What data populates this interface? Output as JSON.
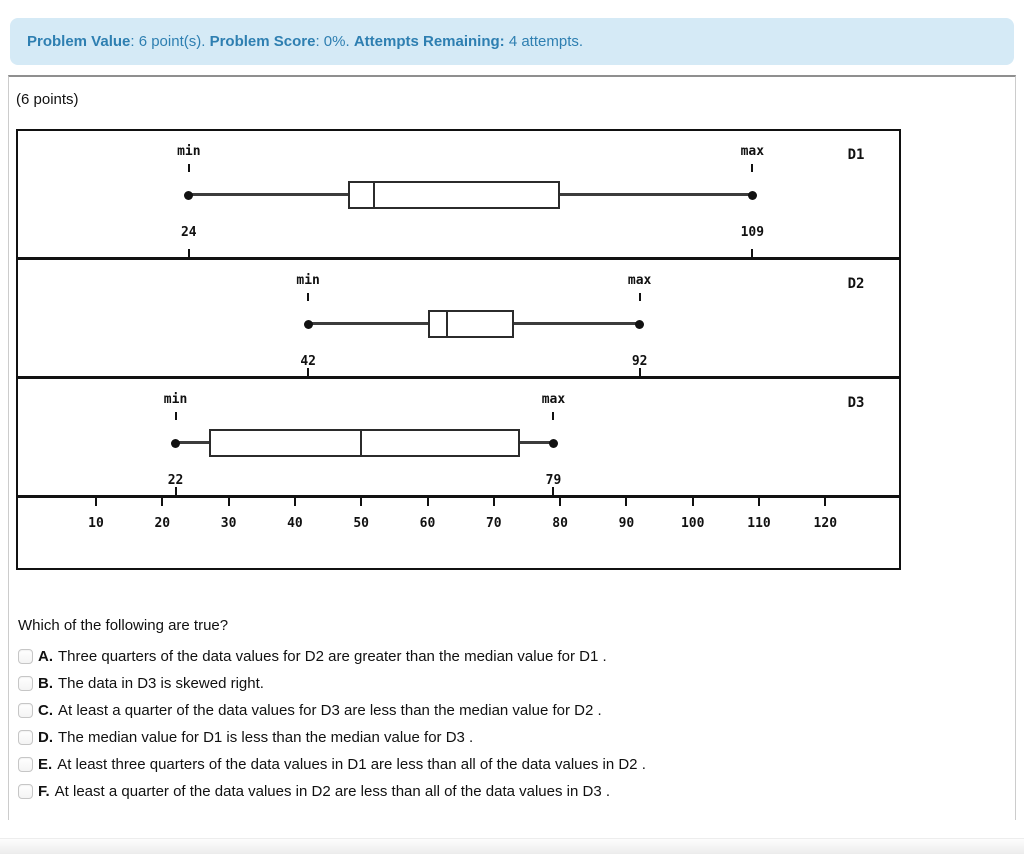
{
  "banner": {
    "segments": [
      {
        "text": "Problem Value",
        "bold": true
      },
      {
        "text": ": 6 point(s). ",
        "bold": false
      },
      {
        "text": "Problem Score",
        "bold": true
      },
      {
        "text": ": 0%. ",
        "bold": false
      },
      {
        "text": "Attempts Remaining:",
        "bold": true
      },
      {
        "text": " 4 attempts.",
        "bold": false
      }
    ]
  },
  "points_label": "(6 points)",
  "chart_data": {
    "type": "boxplot",
    "orientation": "horizontal",
    "axis": {
      "min": 10,
      "max": 120,
      "tick_step": 10,
      "ticks": [
        10,
        20,
        30,
        40,
        50,
        60,
        70,
        80,
        90,
        100,
        110,
        120
      ]
    },
    "annotations": {
      "min_label": "min",
      "max_label": "max"
    },
    "series": [
      {
        "name": "D1",
        "min": 24,
        "q1": 48,
        "median": 52,
        "q3": 80,
        "max": 109
      },
      {
        "name": "D2",
        "min": 42,
        "q1": 60,
        "median": 63,
        "q3": 73,
        "max": 92
      },
      {
        "name": "D3",
        "min": 22,
        "q1": 27,
        "median": 50,
        "q3": 74,
        "max": 79
      }
    ]
  },
  "question": {
    "prompt": "Which of the following are true?",
    "options": [
      {
        "letter": "A.",
        "text": "Three quarters of the data values for D2 are greater than the median value for D1 .",
        "checked": false
      },
      {
        "letter": "B.",
        "text": "The data in D3 is skewed right.",
        "checked": false
      },
      {
        "letter": "C.",
        "text": "At least a quarter of the data values for D3 are less than the median value for D2 .",
        "checked": false
      },
      {
        "letter": "D.",
        "text": "The median value for D1 is less than the median value for D3 .",
        "checked": false
      },
      {
        "letter": "E.",
        "text": "At least three quarters of the data values in D1 are less than all of the data values in D2 .",
        "checked": false
      },
      {
        "letter": "F.",
        "text": "At least a quarter of the data values in D2 are less than all of the data values in D3 .",
        "checked": false
      }
    ]
  }
}
